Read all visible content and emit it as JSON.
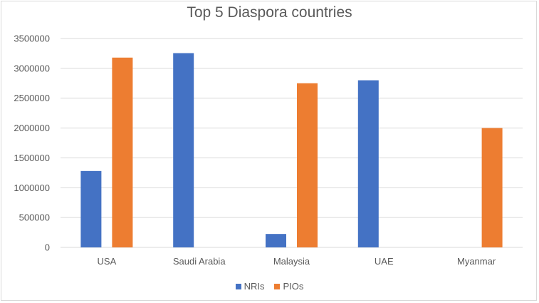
{
  "chart_data": {
    "type": "bar",
    "title": "Top 5 Diaspora countries",
    "categories": [
      "USA",
      "Saudi Arabia",
      "Malaysia",
      "UAE",
      "Myanmar"
    ],
    "series": [
      {
        "name": "NRIs",
        "color": "#4472c4",
        "values": [
          1280000,
          3255000,
          225000,
          2800000,
          0
        ]
      },
      {
        "name": "PIOs",
        "color": "#ed7d31",
        "values": [
          3180000,
          0,
          2750000,
          0,
          2000000
        ]
      }
    ],
    "ylim": [
      0,
      3500000
    ],
    "yticks": [
      0,
      500000,
      1000000,
      1500000,
      2000000,
      2500000,
      3000000,
      3500000
    ],
    "ytick_labels": [
      "0",
      "500000",
      "1000000",
      "1500000",
      "2000000",
      "2500000",
      "3000000",
      "3500000"
    ],
    "xlabel": "",
    "ylabel": "",
    "grid": true,
    "legend": "bottom"
  }
}
